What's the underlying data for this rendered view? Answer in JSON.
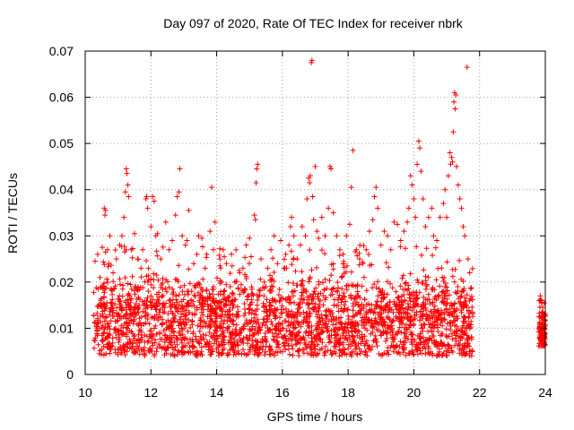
{
  "chart_data": {
    "type": "scatter",
    "title": "Day 097 of 2020, Rate Of TEC Index for receiver nbrk",
    "xlabel": "GPS time / hours",
    "ylabel": "ROTI / TECUs",
    "xlim": [
      10,
      24
    ],
    "ylim": [
      0,
      0.07
    ],
    "x_ticks": [
      10,
      12,
      14,
      16,
      18,
      20,
      22,
      24
    ],
    "y_ticks": [
      0,
      0.01,
      0.02,
      0.03,
      0.04,
      0.05,
      0.06,
      0.07
    ],
    "x_tick_labels": [
      "10",
      "12",
      "14",
      "16",
      "18",
      "20",
      "22",
      "24"
    ],
    "y_tick_labels": [
      "0",
      "0.01",
      "0.02",
      "0.03",
      "0.04",
      "0.05",
      "0.06",
      "0.07"
    ],
    "grid": true,
    "marker": "+",
    "color": "#ff0000",
    "points": [
      [
        10.3,
        0.0245
      ],
      [
        10.38,
        0.026
      ],
      [
        10.45,
        0.021
      ],
      [
        10.52,
        0.0275
      ],
      [
        10.58,
        0.036
      ],
      [
        10.6,
        0.0345
      ],
      [
        10.62,
        0.0355
      ],
      [
        10.68,
        0.027
      ],
      [
        10.72,
        0.024
      ],
      [
        10.75,
        0.03
      ],
      [
        10.85,
        0.022
      ],
      [
        10.95,
        0.025
      ],
      [
        11.05,
        0.028
      ],
      [
        11.12,
        0.03
      ],
      [
        11.18,
        0.034
      ],
      [
        11.22,
        0.0395
      ],
      [
        11.25,
        0.0445
      ],
      [
        11.27,
        0.0435
      ],
      [
        11.3,
        0.041
      ],
      [
        11.32,
        0.0385
      ],
      [
        11.4,
        0.027
      ],
      [
        11.5,
        0.0305
      ],
      [
        11.6,
        0.025
      ],
      [
        11.7,
        0.023
      ],
      [
        11.75,
        0.027
      ],
      [
        11.85,
        0.038
      ],
      [
        11.87,
        0.0385
      ],
      [
        11.9,
        0.036
      ],
      [
        12.0,
        0.032
      ],
      [
        12.05,
        0.0385
      ],
      [
        12.1,
        0.0375
      ],
      [
        12.15,
        0.03
      ],
      [
        12.2,
        0.0305
      ],
      [
        12.3,
        0.025
      ],
      [
        12.45,
        0.033
      ],
      [
        12.55,
        0.027
      ],
      [
        12.65,
        0.029
      ],
      [
        12.75,
        0.0345
      ],
      [
        12.8,
        0.0385
      ],
      [
        12.85,
        0.0395
      ],
      [
        12.88,
        0.0445
      ],
      [
        12.95,
        0.03
      ],
      [
        13.05,
        0.028
      ],
      [
        13.1,
        0.029
      ],
      [
        13.15,
        0.0355
      ],
      [
        13.3,
        0.024
      ],
      [
        13.4,
        0.026
      ],
      [
        13.45,
        0.03
      ],
      [
        13.55,
        0.0295
      ],
      [
        13.65,
        0.023
      ],
      [
        13.7,
        0.026
      ],
      [
        13.8,
        0.031
      ],
      [
        13.85,
        0.0405
      ],
      [
        13.9,
        0.027
      ],
      [
        13.95,
        0.033
      ],
      [
        14.1,
        0.025
      ],
      [
        14.2,
        0.027
      ],
      [
        14.3,
        0.024
      ],
      [
        14.45,
        0.026
      ],
      [
        14.55,
        0.02
      ],
      [
        14.7,
        0.022
      ],
      [
        14.8,
        0.023
      ],
      [
        14.9,
        0.028
      ],
      [
        15.0,
        0.0295
      ],
      [
        15.05,
        0.0255
      ],
      [
        15.15,
        0.0345
      ],
      [
        15.18,
        0.0335
      ],
      [
        15.2,
        0.0415
      ],
      [
        15.22,
        0.0445
      ],
      [
        15.25,
        0.0455
      ],
      [
        15.35,
        0.025
      ],
      [
        15.45,
        0.02
      ],
      [
        15.55,
        0.023
      ],
      [
        15.65,
        0.027
      ],
      [
        15.75,
        0.03
      ],
      [
        15.85,
        0.024
      ],
      [
        15.95,
        0.029
      ],
      [
        16.05,
        0.023
      ],
      [
        16.1,
        0.026
      ],
      [
        16.2,
        0.028
      ],
      [
        16.25,
        0.032
      ],
      [
        16.28,
        0.034
      ],
      [
        16.35,
        0.03
      ],
      [
        16.45,
        0.025
      ],
      [
        16.55,
        0.028
      ],
      [
        16.6,
        0.032
      ],
      [
        16.7,
        0.03
      ],
      [
        16.75,
        0.038
      ],
      [
        16.8,
        0.0425
      ],
      [
        16.83,
        0.0415
      ],
      [
        16.85,
        0.043
      ],
      [
        16.88,
        0.0675
      ],
      [
        16.9,
        0.068
      ],
      [
        16.92,
        0.0385
      ],
      [
        16.95,
        0.0335
      ],
      [
        17.0,
        0.045
      ],
      [
        17.05,
        0.031
      ],
      [
        17.1,
        0.0295
      ],
      [
        17.2,
        0.034
      ],
      [
        17.3,
        0.03
      ],
      [
        17.4,
        0.036
      ],
      [
        17.45,
        0.045
      ],
      [
        17.48,
        0.0445
      ],
      [
        17.55,
        0.035
      ],
      [
        17.65,
        0.03
      ],
      [
        17.75,
        0.027
      ],
      [
        17.85,
        0.026
      ],
      [
        17.95,
        0.03
      ],
      [
        18.05,
        0.0325
      ],
      [
        18.1,
        0.0405
      ],
      [
        18.15,
        0.0485
      ],
      [
        18.25,
        0.027
      ],
      [
        18.35,
        0.025
      ],
      [
        18.45,
        0.024
      ],
      [
        18.55,
        0.027
      ],
      [
        18.65,
        0.031
      ],
      [
        18.75,
        0.0335
      ],
      [
        18.8,
        0.0385
      ],
      [
        18.85,
        0.0405
      ],
      [
        18.9,
        0.036
      ],
      [
        19.0,
        0.028
      ],
      [
        19.1,
        0.031
      ],
      [
        19.2,
        0.03
      ],
      [
        19.3,
        0.027
      ],
      [
        19.4,
        0.033
      ],
      [
        19.5,
        0.0325
      ],
      [
        19.6,
        0.029
      ],
      [
        19.7,
        0.031
      ],
      [
        19.8,
        0.033
      ],
      [
        19.85,
        0.036
      ],
      [
        19.9,
        0.043
      ],
      [
        19.95,
        0.041
      ],
      [
        20.0,
        0.038
      ],
      [
        20.05,
        0.034
      ],
      [
        20.1,
        0.0455
      ],
      [
        20.15,
        0.0505
      ],
      [
        20.18,
        0.049
      ],
      [
        20.22,
        0.044
      ],
      [
        20.28,
        0.038
      ],
      [
        20.35,
        0.032
      ],
      [
        20.45,
        0.034
      ],
      [
        20.55,
        0.036
      ],
      [
        20.6,
        0.03
      ],
      [
        20.7,
        0.029
      ],
      [
        20.8,
        0.034
      ],
      [
        20.9,
        0.037
      ],
      [
        20.95,
        0.04
      ],
      [
        21.0,
        0.034
      ],
      [
        21.05,
        0.043
      ],
      [
        21.1,
        0.048
      ],
      [
        21.12,
        0.0455
      ],
      [
        21.15,
        0.047
      ],
      [
        21.18,
        0.046
      ],
      [
        21.2,
        0.0525
      ],
      [
        21.22,
        0.059
      ],
      [
        21.24,
        0.061
      ],
      [
        21.26,
        0.0575
      ],
      [
        21.28,
        0.0605
      ],
      [
        21.3,
        0.045
      ],
      [
        21.35,
        0.041
      ],
      [
        21.4,
        0.038
      ],
      [
        21.45,
        0.036
      ],
      [
        21.5,
        0.032
      ],
      [
        21.55,
        0.03
      ],
      [
        21.62,
        0.0665
      ],
      [
        21.65,
        0.025
      ],
      [
        21.7,
        0.022
      ],
      [
        23.85,
        0.017
      ],
      [
        23.88,
        0.016
      ],
      [
        23.92,
        0.0145
      ],
      [
        23.95,
        0.013
      ],
      [
        23.97,
        0.0155
      ]
    ],
    "dense_band": {
      "description": "Dense cloud of points spanning 10.25–21.8 h between ROTI 0.004 and 0.028, plus 23.8–24 h between 0.006 and 0.017",
      "segments": [
        {
          "x": [
            10.25,
            21.8
          ],
          "y_min": 0.004,
          "y_typical_max": 0.022,
          "y_max": 0.028,
          "count": 2600
        },
        {
          "x": [
            23.8,
            24.0
          ],
          "y_min": 0.006,
          "y_typical_max": 0.014,
          "y_max": 0.017,
          "count": 120
        }
      ],
      "seed": 97
    }
  }
}
